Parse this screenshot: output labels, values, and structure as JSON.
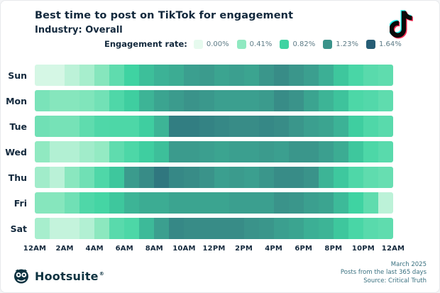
{
  "colors": {
    "text_dark": "#13293d",
    "footer_teal": "#3a7180",
    "brand_navy": "#0d3341",
    "tiktok_cyan": "#25f4ee",
    "tiktok_pink": "#fe2c55",
    "tiktok_black": "#0a0a0a"
  },
  "brand": {
    "name": "Hootsuite",
    "registered": "®"
  },
  "footer": {
    "lines": [
      "March 2025",
      "Posts from the last 365 days",
      "Source: Critical Truth"
    ]
  },
  "chart_data": {
    "type": "heatmap",
    "title": "Best time to post on TikTok for engagement",
    "subtitle": "Industry: Overall",
    "value_unit": "% engagement rate",
    "value_max": 1.64,
    "legend": {
      "label": "Engagement rate:",
      "stops": [
        {
          "label": "0.00%",
          "color": "#e6faee"
        },
        {
          "label": "0.41%",
          "color": "#90e9c1"
        },
        {
          "label": "0.82%",
          "color": "#3fd3a2"
        },
        {
          "label": "1.23%",
          "color": "#3a938a"
        },
        {
          "label": "1.64%",
          "color": "#265d75"
        }
      ]
    },
    "x_tick_labels": [
      "12AM",
      "2AM",
      "4AM",
      "6AM",
      "8AM",
      "10AM",
      "12PM",
      "2PM",
      "4PM",
      "6PM",
      "8PM",
      "10PM",
      "12AM"
    ],
    "hours": [
      "12AM",
      "1AM",
      "2AM",
      "3AM",
      "4AM",
      "5AM",
      "6AM",
      "7AM",
      "8AM",
      "9AM",
      "10AM",
      "11AM",
      "12PM",
      "1PM",
      "2PM",
      "3PM",
      "4PM",
      "5PM",
      "6PM",
      "7PM",
      "8PM",
      "9PM",
      "10PM",
      "11PM"
    ],
    "rows": [
      {
        "day": "Sun",
        "values": [
          0.08,
          0.08,
          0.2,
          0.3,
          0.46,
          0.66,
          0.82,
          0.95,
          1.03,
          1.07,
          1.15,
          1.18,
          1.12,
          1.15,
          1.12,
          1.21,
          1.28,
          1.21,
          1.15,
          1.05,
          0.9,
          0.77,
          0.69,
          0.66
        ]
      },
      {
        "day": "Mon",
        "values": [
          0.52,
          0.46,
          0.46,
          0.49,
          0.56,
          0.74,
          0.85,
          1.02,
          1.12,
          1.18,
          1.23,
          1.2,
          1.15,
          1.15,
          1.15,
          1.18,
          1.28,
          1.23,
          1.12,
          1.02,
          0.92,
          0.75,
          0.72,
          0.66
        ]
      },
      {
        "day": "Tue",
        "values": [
          0.57,
          0.54,
          0.54,
          0.66,
          0.74,
          0.75,
          0.75,
          0.85,
          1.02,
          1.39,
          1.39,
          1.35,
          1.31,
          1.28,
          1.28,
          1.31,
          1.28,
          1.21,
          1.15,
          1.12,
          1.03,
          0.85,
          0.74,
          0.69
        ]
      },
      {
        "day": "Wed",
        "values": [
          0.41,
          0.25,
          0.25,
          0.33,
          0.39,
          0.66,
          0.75,
          0.85,
          0.95,
          1.18,
          1.18,
          1.15,
          1.12,
          1.15,
          1.15,
          1.18,
          1.15,
          1.21,
          1.21,
          1.15,
          1.07,
          0.9,
          0.75,
          0.69
        ]
      },
      {
        "day": "Thu",
        "values": [
          0.33,
          0.21,
          0.44,
          0.57,
          0.74,
          0.9,
          1.18,
          1.28,
          1.44,
          1.31,
          1.28,
          1.23,
          1.15,
          1.18,
          1.15,
          1.21,
          1.28,
          1.28,
          1.23,
          1.02,
          0.89,
          0.74,
          0.66,
          0.62
        ]
      },
      {
        "day": "Fri",
        "values": [
          0.46,
          0.46,
          0.57,
          0.74,
          0.79,
          0.9,
          1.02,
          1.07,
          1.07,
          1.12,
          1.12,
          1.12,
          1.12,
          1.15,
          1.15,
          1.15,
          1.23,
          1.21,
          1.15,
          1.12,
          0.98,
          0.82,
          0.66,
          0.2
        ]
      },
      {
        "day": "Sat",
        "values": [
          0.3,
          0.16,
          0.16,
          0.25,
          0.43,
          0.69,
          0.75,
          0.98,
          1.15,
          1.31,
          1.28,
          1.28,
          1.28,
          1.28,
          1.23,
          1.21,
          1.15,
          1.12,
          1.05,
          1.02,
          0.9,
          0.77,
          0.69,
          0.66
        ]
      }
    ]
  }
}
